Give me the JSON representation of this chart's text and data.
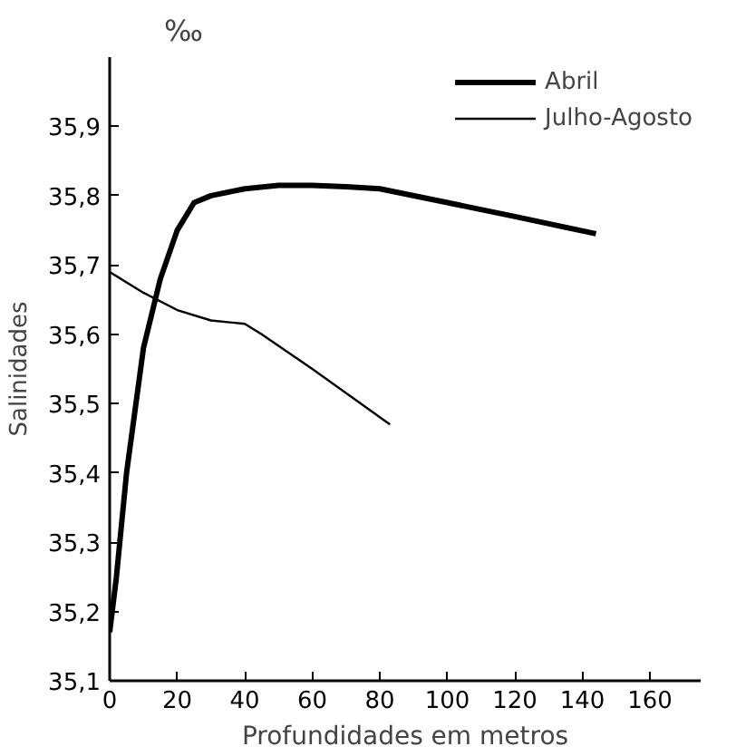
{
  "chart_data": {
    "type": "line",
    "xlabel": "Profundidades em metros",
    "ylabel": "Salinidades",
    "annotations": [
      "‰"
    ],
    "xlim": [
      0,
      175
    ],
    "xticks": [
      0,
      20,
      40,
      60,
      80,
      100,
      120,
      140,
      160
    ],
    "ylim": [
      35.1,
      36.0
    ],
    "yticks": [
      {
        "value": 35.1,
        "label": "35,1"
      },
      {
        "value": 35.2,
        "label": "35,2"
      },
      {
        "value": 35.3,
        "label": "35,3"
      },
      {
        "value": 35.4,
        "label": "35,4"
      },
      {
        "value": 35.5,
        "label": "35,5"
      },
      {
        "value": 35.6,
        "label": "35,6"
      },
      {
        "value": 35.7,
        "label": "35,7"
      },
      {
        "value": 35.8,
        "label": "35,8"
      },
      {
        "value": 35.9,
        "label": "35,9"
      }
    ],
    "grid": false,
    "legend": "top right",
    "series": [
      {
        "name": "Abril",
        "color": "#000000",
        "x": [
          0,
          2,
          5,
          10,
          15,
          20,
          25,
          30,
          40,
          50,
          60,
          70,
          80,
          100,
          120,
          144
        ],
        "values": [
          35.17,
          35.25,
          35.4,
          35.58,
          35.68,
          35.75,
          35.79,
          35.8,
          35.81,
          35.815,
          35.815,
          35.813,
          35.81,
          35.79,
          35.77,
          35.745
        ]
      },
      {
        "name": "Julho-Agosto",
        "color": "#000000",
        "x": [
          0,
          10,
          20,
          30,
          40,
          45,
          60,
          83
        ],
        "values": [
          35.69,
          35.66,
          35.635,
          35.62,
          35.615,
          35.6,
          35.55,
          35.47
        ]
      }
    ]
  }
}
